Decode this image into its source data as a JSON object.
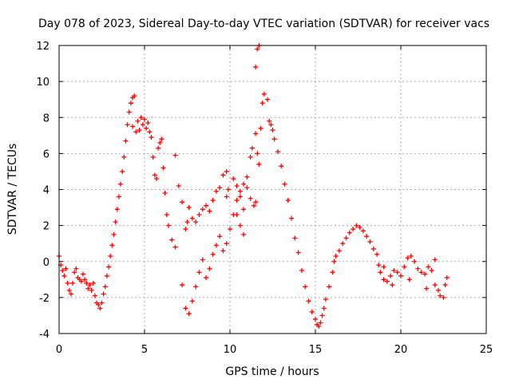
{
  "chart_data": {
    "type": "scatter",
    "title": "Day 078 of 2023, Sidereal Day-to-day VTEC variation (SDTVAR) for receiver vacs",
    "xlabel": "GPS time / hours",
    "ylabel": "SDTVAR / TECUs",
    "xlim": [
      0,
      25
    ],
    "ylim": [
      -4,
      12
    ],
    "xticks": [
      0,
      5,
      10,
      15,
      20,
      25
    ],
    "yticks": [
      -4,
      -2,
      0,
      2,
      4,
      6,
      8,
      10,
      12
    ],
    "grid": true,
    "marker": "+",
    "color": "#ff0000",
    "series": [
      {
        "name": "SDTVAR",
        "points": [
          [
            0.0,
            0.3
          ],
          [
            0.1,
            -0.2
          ],
          [
            0.2,
            -0.5
          ],
          [
            0.3,
            -0.8
          ],
          [
            0.4,
            -0.4
          ],
          [
            0.5,
            -1.2
          ],
          [
            0.6,
            -1.6
          ],
          [
            0.7,
            -1.8
          ],
          [
            0.8,
            -1.2
          ],
          [
            0.9,
            -0.6
          ],
          [
            1.0,
            -0.4
          ],
          [
            1.1,
            -0.9
          ],
          [
            1.2,
            -1.0
          ],
          [
            1.3,
            -1.1
          ],
          [
            1.4,
            -0.7
          ],
          [
            1.5,
            -1.0
          ],
          [
            1.6,
            -1.2
          ],
          [
            1.7,
            -1.5
          ],
          [
            1.8,
            -1.3
          ],
          [
            1.9,
            -1.6
          ],
          [
            2.0,
            -1.2
          ],
          [
            2.1,
            -1.9
          ],
          [
            2.2,
            -2.3
          ],
          [
            2.3,
            -2.4
          ],
          [
            2.4,
            -2.6
          ],
          [
            2.5,
            -2.3
          ],
          [
            2.6,
            -1.8
          ],
          [
            2.7,
            -1.4
          ],
          [
            2.8,
            -0.8
          ],
          [
            2.9,
            -0.3
          ],
          [
            3.0,
            0.3
          ],
          [
            3.1,
            0.9
          ],
          [
            3.2,
            1.5
          ],
          [
            3.3,
            2.2
          ],
          [
            3.4,
            2.9
          ],
          [
            3.5,
            3.6
          ],
          [
            3.6,
            4.3
          ],
          [
            3.7,
            5.0
          ],
          [
            3.8,
            5.8
          ],
          [
            3.9,
            6.7
          ],
          [
            4.0,
            7.6
          ],
          [
            4.1,
            8.3
          ],
          [
            4.2,
            8.8
          ],
          [
            4.3,
            9.1
          ],
          [
            4.4,
            9.2
          ],
          [
            4.3,
            7.5
          ],
          [
            4.5,
            7.2
          ],
          [
            4.6,
            7.8
          ],
          [
            4.7,
            7.3
          ],
          [
            4.8,
            8.0
          ],
          [
            4.9,
            7.6
          ],
          [
            5.0,
            7.9
          ],
          [
            5.1,
            7.4
          ],
          [
            5.2,
            7.7
          ],
          [
            5.3,
            7.2
          ],
          [
            5.4,
            6.9
          ],
          [
            5.5,
            5.8
          ],
          [
            5.6,
            4.8
          ],
          [
            5.7,
            4.6
          ],
          [
            5.8,
            6.3
          ],
          [
            5.9,
            6.6
          ],
          [
            6.0,
            6.8
          ],
          [
            6.1,
            5.2
          ],
          [
            6.2,
            3.8
          ],
          [
            6.3,
            2.6
          ],
          [
            6.4,
            2.0
          ],
          [
            6.6,
            1.2
          ],
          [
            6.8,
            0.8
          ],
          [
            6.8,
            5.9
          ],
          [
            7.0,
            4.2
          ],
          [
            7.2,
            3.3
          ],
          [
            7.4,
            1.8
          ],
          [
            7.5,
            2.2
          ],
          [
            7.6,
            3.0
          ],
          [
            7.8,
            2.4
          ],
          [
            8.0,
            2.2
          ],
          [
            8.2,
            2.6
          ],
          [
            8.4,
            2.9
          ],
          [
            8.6,
            3.1
          ],
          [
            8.8,
            2.8
          ],
          [
            9.0,
            3.4
          ],
          [
            9.2,
            3.9
          ],
          [
            9.4,
            4.1
          ],
          [
            9.6,
            4.8
          ],
          [
            9.8,
            5.0
          ],
          [
            7.2,
            -1.3
          ],
          [
            7.4,
            -2.6
          ],
          [
            7.6,
            -2.9
          ],
          [
            7.8,
            -2.2
          ],
          [
            8.0,
            -1.4
          ],
          [
            8.2,
            -0.6
          ],
          [
            8.4,
            0.1
          ],
          [
            8.6,
            -0.9
          ],
          [
            8.8,
            -0.4
          ],
          [
            9.0,
            0.4
          ],
          [
            9.2,
            0.9
          ],
          [
            9.4,
            1.4
          ],
          [
            9.6,
            0.6
          ],
          [
            9.8,
            1.0
          ],
          [
            10.0,
            1.8
          ],
          [
            10.2,
            2.6
          ],
          [
            10.4,
            3.4
          ],
          [
            10.6,
            3.9
          ],
          [
            10.8,
            4.3
          ],
          [
            11.0,
            4.7
          ],
          [
            10.2,
            4.6
          ],
          [
            10.4,
            4.2
          ],
          [
            10.6,
            3.6
          ],
          [
            10.8,
            2.9
          ],
          [
            11.0,
            4.1
          ],
          [
            11.2,
            3.5
          ],
          [
            11.4,
            3.1
          ],
          [
            11.5,
            3.3
          ],
          [
            10.4,
            2.6
          ],
          [
            10.6,
            2.0
          ],
          [
            10.8,
            1.5
          ],
          [
            9.8,
            3.6
          ],
          [
            9.9,
            4.0
          ],
          [
            11.2,
            5.8
          ],
          [
            11.3,
            6.3
          ],
          [
            11.5,
            7.1
          ],
          [
            11.6,
            6.0
          ],
          [
            11.7,
            5.4
          ],
          [
            11.8,
            7.4
          ],
          [
            11.9,
            8.8
          ],
          [
            12.0,
            9.3
          ],
          [
            11.5,
            10.8
          ],
          [
            11.6,
            11.8
          ],
          [
            11.7,
            12.0
          ],
          [
            12.2,
            9.0
          ],
          [
            12.3,
            7.8
          ],
          [
            12.4,
            7.6
          ],
          [
            12.5,
            7.3
          ],
          [
            12.6,
            6.8
          ],
          [
            12.8,
            6.1
          ],
          [
            13.0,
            5.3
          ],
          [
            13.2,
            4.3
          ],
          [
            13.4,
            3.4
          ],
          [
            13.6,
            2.4
          ],
          [
            13.8,
            1.3
          ],
          [
            14.0,
            0.5
          ],
          [
            14.2,
            -0.5
          ],
          [
            14.4,
            -1.4
          ],
          [
            14.6,
            -2.2
          ],
          [
            14.8,
            -2.8
          ],
          [
            15.0,
            -3.2
          ],
          [
            15.1,
            -3.5
          ],
          [
            15.2,
            -3.6
          ],
          [
            15.3,
            -3.4
          ],
          [
            15.4,
            -3.0
          ],
          [
            15.5,
            -2.6
          ],
          [
            15.6,
            -2.1
          ],
          [
            15.8,
            -1.4
          ],
          [
            16.0,
            -0.6
          ],
          [
            16.1,
            0.0
          ],
          [
            16.2,
            0.3
          ],
          [
            16.4,
            0.6
          ],
          [
            16.6,
            1.0
          ],
          [
            16.8,
            1.3
          ],
          [
            17.0,
            1.6
          ],
          [
            17.2,
            1.8
          ],
          [
            17.4,
            2.0
          ],
          [
            17.6,
            1.9
          ],
          [
            17.8,
            1.7
          ],
          [
            18.0,
            1.4
          ],
          [
            18.2,
            1.1
          ],
          [
            18.4,
            0.7
          ],
          [
            18.6,
            0.4
          ],
          [
            18.7,
            -0.2
          ],
          [
            18.8,
            -0.6
          ],
          [
            19.0,
            -1.0
          ],
          [
            19.2,
            -1.1
          ],
          [
            19.4,
            -0.8
          ],
          [
            19.6,
            -0.5
          ],
          [
            19.8,
            -0.6
          ],
          [
            20.0,
            -0.8
          ],
          [
            20.2,
            -0.3
          ],
          [
            20.4,
            0.2
          ],
          [
            20.6,
            0.3
          ],
          [
            20.8,
            0.0
          ],
          [
            21.0,
            -0.4
          ],
          [
            21.2,
            -0.6
          ],
          [
            21.4,
            -0.7
          ],
          [
            21.6,
            -0.3
          ],
          [
            21.8,
            -0.5
          ],
          [
            22.0,
            -1.3
          ],
          [
            22.2,
            -1.6
          ],
          [
            22.3,
            -1.9
          ],
          [
            22.5,
            -2.0
          ],
          [
            22.6,
            -1.3
          ],
          [
            22.7,
            -0.9
          ],
          [
            19.0,
            -0.3
          ],
          [
            19.5,
            -1.3
          ],
          [
            20.5,
            -1.0
          ],
          [
            21.5,
            -1.5
          ],
          [
            22.0,
            0.1
          ]
        ]
      }
    ]
  }
}
